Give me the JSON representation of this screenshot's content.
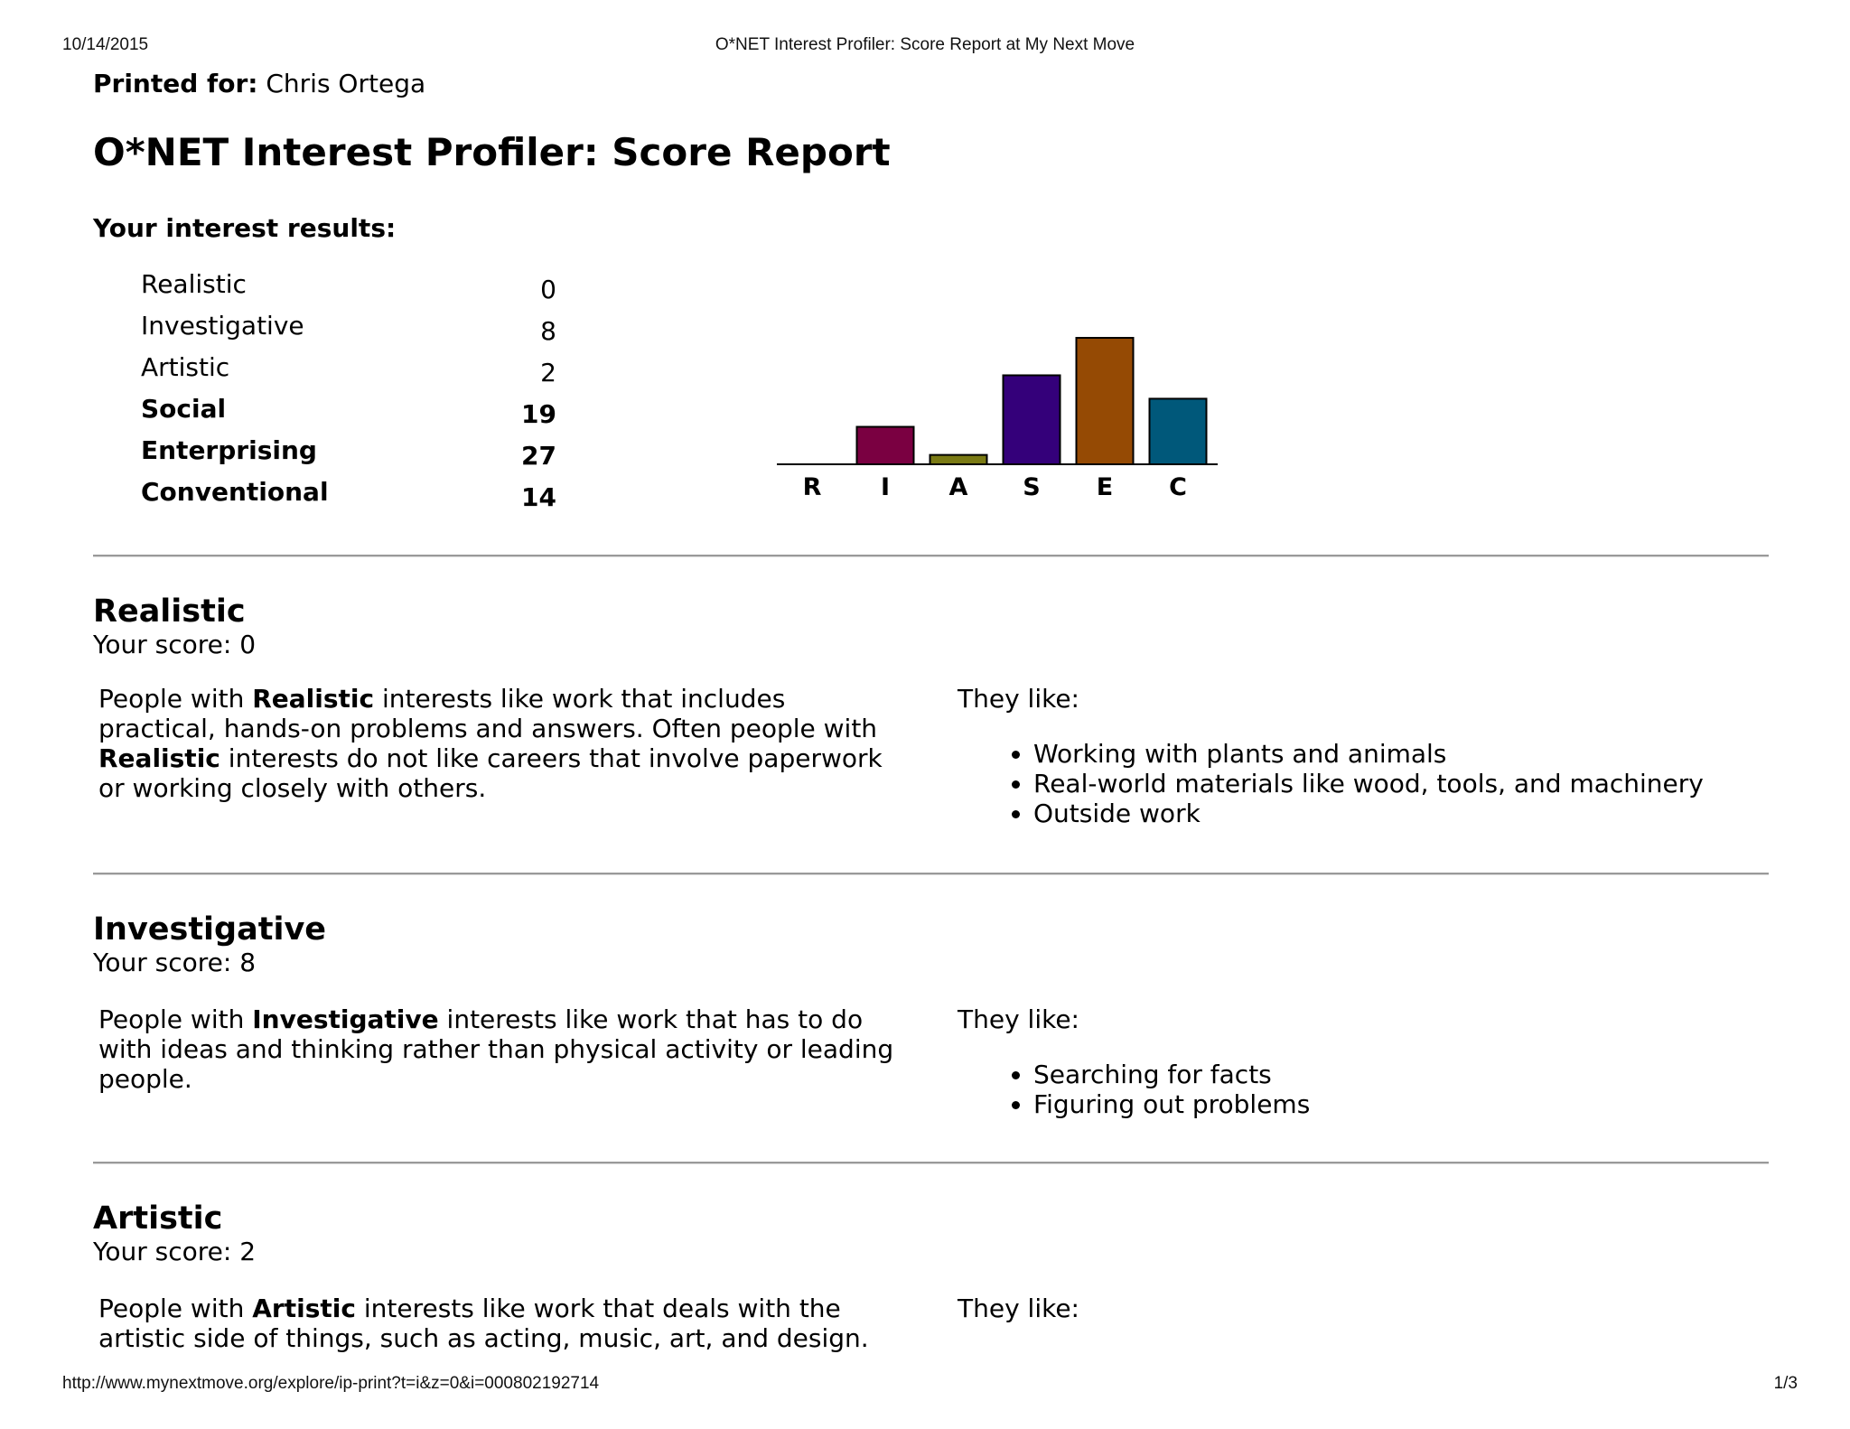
{
  "print_header": {
    "date": "10/14/2015",
    "title": "O*NET Interest Profiler: Score Report at My Next Move"
  },
  "print_footer": {
    "url": "http://www.mynextmove.org/explore/ip-print?t=i&z=0&i=000802192714",
    "page": "1/3"
  },
  "printed_for": {
    "label": "Printed for:",
    "name": "Chris Ortega"
  },
  "page_title": "O*NET Interest Profiler: Score Report",
  "results_heading": "Your interest results:",
  "scores": [
    {
      "name": "Realistic",
      "value": "0",
      "bold": false
    },
    {
      "name": "Investigative",
      "value": "8",
      "bold": false
    },
    {
      "name": "Artistic",
      "value": "2",
      "bold": false
    },
    {
      "name": "Social",
      "value": "19",
      "bold": true
    },
    {
      "name": "Enterprising",
      "value": "27",
      "bold": true
    },
    {
      "name": "Conventional",
      "value": "14",
      "bold": true
    }
  ],
  "chart_data": {
    "type": "bar",
    "categories": [
      "R",
      "I",
      "A",
      "S",
      "E",
      "C"
    ],
    "values": [
      0,
      8,
      2,
      19,
      27,
      14
    ],
    "colors": [
      "#cc0066",
      "#7a0041",
      "#7a7a14",
      "#34007a",
      "#954a04",
      "#00587a"
    ],
    "title": "",
    "xlabel": "",
    "ylabel": "",
    "grid": false
  },
  "sections": [
    {
      "title": "Realistic",
      "score": "Your score: 0",
      "desc_lines": [
        [
          {
            "t": "People with ",
            "b": false
          },
          {
            "t": "Realistic",
            "b": true
          },
          {
            "t": " interests like work that includes",
            "b": false
          }
        ],
        [
          {
            "t": "practical, hands-on problems and answers. Often people with",
            "b": false
          }
        ],
        [
          {
            "t": "Realistic",
            "b": true
          },
          {
            "t": " interests do not like careers that involve paperwork",
            "b": false
          }
        ],
        [
          {
            "t": "or working closely with others.",
            "b": false
          }
        ]
      ],
      "likes_label": "They like:",
      "likes": [
        "Working with plants and animals",
        "Real-world materials like wood, tools, and machinery",
        "Outside work"
      ]
    },
    {
      "title": "Investigative",
      "score": "Your score: 8",
      "desc_lines": [
        [
          {
            "t": "People with ",
            "b": false
          },
          {
            "t": "Investigative",
            "b": true
          },
          {
            "t": " interests like work that has to do",
            "b": false
          }
        ],
        [
          {
            "t": "with ideas and thinking rather than physical activity or leading",
            "b": false
          }
        ],
        [
          {
            "t": "people.",
            "b": false
          }
        ]
      ],
      "likes_label": "They like:",
      "likes": [
        "Searching for facts",
        "Figuring out problems"
      ]
    },
    {
      "title": "Artistic",
      "score": "Your score: 2",
      "desc_lines": [
        [
          {
            "t": "People with ",
            "b": false
          },
          {
            "t": "Artistic",
            "b": true
          },
          {
            "t": " interests like work that deals with the",
            "b": false
          }
        ],
        [
          {
            "t": "artistic side of things, such as acting, music, art, and design.",
            "b": false
          }
        ]
      ],
      "likes_label": "They like:",
      "likes": []
    }
  ]
}
